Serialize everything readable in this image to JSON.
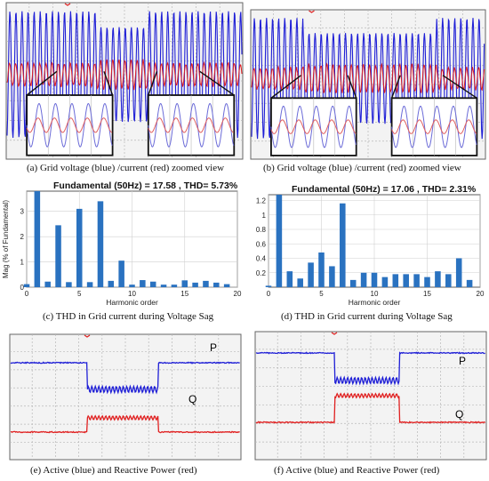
{
  "colors": {
    "blue": "#1f1fd6",
    "red": "#e02020",
    "bar": "#2a72c0",
    "grid": "#b8b8b8",
    "bg": "#f3f3f3"
  },
  "captions": {
    "a": "(a) Grid voltage (blue) /current (red) zoomed view",
    "b": "(b) Grid voltage (blue) /current (red) zoomed view",
    "c": "(c) THD in Grid current during Voltage Sag",
    "d": "(d) THD in Grid current during Voltage Sag",
    "e": "(e) Active (blue) and Reactive Power (red)",
    "f": "(f) Active (blue) and Reactive Power (red)"
  },
  "power_labels": {
    "p": "P",
    "q": "Q"
  },
  "chart_data": [
    {
      "type": "bar",
      "title": "Fundamental (50Hz) = 17.58 , THD= 5.73%",
      "xlabel": "Harmonic order",
      "ylabel": "Mag (% of Fundamental)",
      "x": [
        0,
        1,
        2,
        3,
        4,
        5,
        6,
        7,
        8,
        9,
        10,
        11,
        12,
        13,
        14,
        15,
        16,
        17,
        18,
        19
      ],
      "values": [
        0.12,
        3.8,
        0.22,
        2.45,
        0.2,
        3.1,
        0.2,
        3.4,
        0.25,
        1.05,
        0.1,
        0.28,
        0.22,
        0.1,
        0.1,
        0.27,
        0.18,
        0.25,
        0.18,
        0.12
      ],
      "xlim": [
        0,
        20
      ],
      "ylim": [
        0,
        3.8
      ],
      "xticks": [
        0,
        5,
        10,
        15,
        20
      ],
      "yticks": [
        0,
        1,
        2,
        3
      ],
      "grid": true
    },
    {
      "type": "bar",
      "title": "Fundamental (50Hz) = 17.06 , THD= 2.31%",
      "xlabel": "Harmonic order",
      "ylabel": "",
      "x": [
        0,
        1,
        2,
        3,
        4,
        5,
        6,
        7,
        8,
        9,
        10,
        11,
        12,
        13,
        14,
        15,
        16,
        17,
        18,
        19
      ],
      "values": [
        0.02,
        1.28,
        0.22,
        0.12,
        0.34,
        0.48,
        0.29,
        1.16,
        0.1,
        0.2,
        0.2,
        0.14,
        0.18,
        0.18,
        0.18,
        0.14,
        0.22,
        0.18,
        0.4,
        0.1
      ],
      "xlim": [
        0,
        20
      ],
      "ylim": [
        0,
        1.28
      ],
      "xticks": [
        0,
        5,
        10,
        15,
        20
      ],
      "yticks": [
        0.2,
        0.4,
        0.6,
        0.8,
        1,
        1.2
      ],
      "grid": true
    }
  ]
}
